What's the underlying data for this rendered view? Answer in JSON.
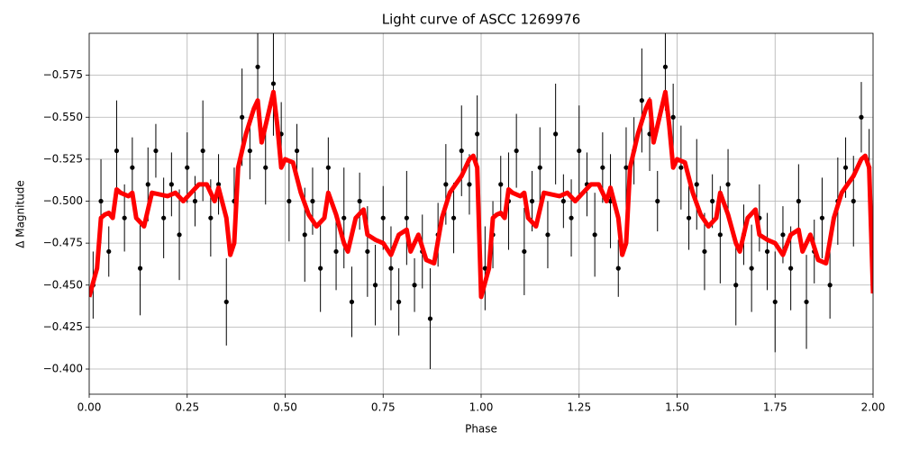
{
  "chart_data": {
    "type": "scatter",
    "title": "Light curve of ASCC 1269976",
    "xlabel": "Phase",
    "ylabel": "Δ Magnitude",
    "xlim": [
      0,
      2
    ],
    "ylim": [
      -0.385,
      -0.6
    ],
    "xticks": [
      {
        "value": 0,
        "label": "0.00"
      },
      {
        "value": 0.25,
        "label": "0.25"
      },
      {
        "value": 0.5,
        "label": "0.50"
      },
      {
        "value": 0.75,
        "label": "0.75"
      },
      {
        "value": 1,
        "label": "1.00"
      },
      {
        "value": 1.25,
        "label": "1.25"
      },
      {
        "value": 1.5,
        "label": "1.50"
      },
      {
        "value": 1.75,
        "label": "1.75"
      },
      {
        "value": 2,
        "label": "2.00"
      }
    ],
    "yticks": [
      {
        "value": -0.4,
        "label": "−0.400"
      },
      {
        "value": -0.425,
        "label": "−0.425"
      },
      {
        "value": -0.45,
        "label": "−0.450"
      },
      {
        "value": -0.475,
        "label": "−0.475"
      },
      {
        "value": -0.5,
        "label": "−0.500"
      },
      {
        "value": -0.525,
        "label": "−0.525"
      },
      {
        "value": -0.55,
        "label": "−0.550"
      },
      {
        "value": -0.575,
        "label": "−0.575"
      }
    ],
    "grid": true,
    "series": [
      {
        "color": "#000000",
        "x": [
          0.01,
          0.03,
          0.05,
          0.07,
          0.09,
          0.11,
          0.13,
          0.15,
          0.17,
          0.19,
          0.21,
          0.23,
          0.25,
          0.27,
          0.29,
          0.31,
          0.33,
          0.35,
          0.37,
          0.39,
          0.41,
          0.43,
          0.45,
          0.47,
          0.49,
          0.51,
          0.53,
          0.55,
          0.57,
          0.59,
          0.61,
          0.63,
          0.65,
          0.67,
          0.69,
          0.71,
          0.73,
          0.75,
          0.77,
          0.79,
          0.81,
          0.83,
          0.85,
          0.87,
          0.89,
          0.91,
          0.93,
          0.95,
          0.97,
          0.99,
          1.01,
          1.03,
          1.05,
          1.07,
          1.09,
          1.11,
          1.13,
          1.15,
          1.17,
          1.19,
          1.21,
          1.23,
          1.25,
          1.27,
          1.29,
          1.31,
          1.33,
          1.35,
          1.37,
          1.39,
          1.41,
          1.43,
          1.45,
          1.47,
          1.49,
          1.51,
          1.53,
          1.55,
          1.57,
          1.59,
          1.61,
          1.63,
          1.65,
          1.67,
          1.69,
          1.71,
          1.73,
          1.75,
          1.77,
          1.79,
          1.81,
          1.83,
          1.85,
          1.87,
          1.89,
          1.91,
          1.93,
          1.95,
          1.97,
          1.99
        ],
        "values": [
          -0.45,
          -0.5,
          -0.47,
          -0.53,
          -0.49,
          -0.52,
          -0.46,
          -0.51,
          -0.53,
          -0.49,
          -0.51,
          -0.48,
          -0.52,
          -0.5,
          -0.53,
          -0.49,
          -0.51,
          -0.44,
          -0.5,
          -0.55,
          -0.53,
          -0.58,
          -0.52,
          -0.57,
          -0.54,
          -0.5,
          -0.53,
          -0.48,
          -0.5,
          -0.46,
          -0.52,
          -0.47,
          -0.49,
          -0.44,
          -0.5,
          -0.47,
          -0.45,
          -0.49,
          -0.46,
          -0.44,
          -0.49,
          -0.45,
          -0.47,
          -0.43,
          -0.48,
          -0.51,
          -0.49,
          -0.53,
          -0.51,
          -0.54,
          -0.46,
          -0.48,
          -0.51,
          -0.5,
          -0.53,
          -0.47,
          -0.5,
          -0.52,
          -0.48,
          -0.54,
          -0.5,
          -0.49,
          -0.53,
          -0.51,
          -0.48,
          -0.52,
          -0.5,
          -0.46,
          -0.52,
          -0.53,
          -0.56,
          -0.54,
          -0.5,
          -0.58,
          -0.55,
          -0.52,
          -0.49,
          -0.51,
          -0.47,
          -0.5,
          -0.48,
          -0.51,
          -0.45,
          -0.48,
          -0.46,
          -0.49,
          -0.47,
          -0.44,
          -0.48,
          -0.46,
          -0.5,
          -0.44,
          -0.47,
          -0.49,
          -0.45,
          -0.5,
          -0.52,
          -0.5,
          -0.55,
          -0.52
        ],
        "errors": [
          0.02,
          0.025,
          0.015,
          0.03,
          0.02,
          0.018,
          0.028,
          0.022,
          0.016,
          0.024,
          0.019,
          0.027,
          0.021,
          0.015,
          0.03,
          0.023,
          0.018,
          0.026,
          0.02,
          0.029,
          0.017,
          0.025,
          0.022,
          0.031,
          0.019,
          0.024,
          0.016,
          0.028,
          0.02,
          0.026,
          0.018,
          0.023,
          0.03,
          0.021,
          0.017,
          0.027,
          0.024,
          0.019,
          0.025,
          0.02,
          0.028,
          0.016,
          0.022,
          0.03,
          0.019,
          0.024,
          0.021,
          0.027,
          0.018,
          0.023,
          0.025,
          0.02,
          0.017,
          0.029,
          0.022,
          0.026,
          0.018,
          0.024,
          0.02,
          0.03,
          0.016,
          0.023,
          0.027,
          0.019,
          0.025,
          0.021,
          0.028,
          0.017,
          0.024,
          0.02,
          0.031,
          0.022,
          0.018,
          0.026,
          0.02,
          0.025,
          0.019,
          0.027,
          0.023,
          0.016,
          0.029,
          0.021,
          0.024,
          0.018,
          0.026,
          0.02,
          0.023,
          0.03,
          0.017,
          0.025,
          0.022,
          0.028,
          0.019,
          0.024,
          0.02,
          0.026,
          0.018,
          0.027,
          0.021,
          0.023
        ]
      },
      {
        "type": "line",
        "color": "#ff0000",
        "x": [
          0,
          0.02,
          0.03,
          0.04,
          0.05,
          0.06,
          0.07,
          0.08,
          0.1,
          0.11,
          0.12,
          0.14,
          0.16,
          0.2,
          0.22,
          0.24,
          0.26,
          0.28,
          0.3,
          0.32,
          0.33,
          0.35,
          0.36,
          0.37,
          0.38,
          0.39,
          0.4,
          0.42,
          0.43,
          0.44,
          0.45,
          0.47,
          0.48,
          0.49,
          0.5,
          0.52,
          0.54,
          0.56,
          0.58,
          0.6,
          0.61,
          0.63,
          0.65,
          0.66,
          0.68,
          0.7,
          0.71,
          0.73,
          0.75,
          0.77,
          0.79,
          0.81,
          0.82,
          0.84,
          0.86,
          0.88,
          0.9,
          0.92,
          0.95,
          0.97,
          0.98,
          0.99,
          1,
          1.02,
          1.03,
          1.04,
          1.05,
          1.06,
          1.07,
          1.08,
          1.1,
          1.11,
          1.12,
          1.14,
          1.16,
          1.2,
          1.22,
          1.24,
          1.26,
          1.28,
          1.3,
          1.32,
          1.33,
          1.35,
          1.36,
          1.37,
          1.38,
          1.39,
          1.4,
          1.42,
          1.43,
          1.44,
          1.45,
          1.47,
          1.48,
          1.49,
          1.5,
          1.52,
          1.54,
          1.56,
          1.58,
          1.6,
          1.61,
          1.63,
          1.65,
          1.66,
          1.68,
          1.7,
          1.71,
          1.73,
          1.75,
          1.77,
          1.79,
          1.81,
          1.82,
          1.84,
          1.86,
          1.88,
          1.9,
          1.92,
          1.95,
          1.97,
          1.98,
          1.99,
          2
        ],
        "values": [
          -0.443,
          -0.46,
          -0.49,
          -0.492,
          -0.493,
          -0.49,
          -0.507,
          -0.505,
          -0.503,
          -0.505,
          -0.49,
          -0.485,
          -0.505,
          -0.503,
          -0.505,
          -0.5,
          -0.505,
          -0.51,
          -0.51,
          -0.5,
          -0.508,
          -0.49,
          -0.468,
          -0.475,
          -0.52,
          -0.53,
          -0.54,
          -0.555,
          -0.56,
          -0.535,
          -0.545,
          -0.565,
          -0.545,
          -0.52,
          -0.525,
          -0.523,
          -0.505,
          -0.492,
          -0.485,
          -0.49,
          -0.505,
          -0.492,
          -0.475,
          -0.47,
          -0.49,
          -0.495,
          -0.48,
          -0.477,
          -0.475,
          -0.468,
          -0.48,
          -0.483,
          -0.47,
          -0.48,
          -0.465,
          -0.463,
          -0.49,
          -0.505,
          -0.515,
          -0.525,
          -0.527,
          -0.52,
          -0.443,
          -0.46,
          -0.49,
          -0.492,
          -0.493,
          -0.49,
          -0.507,
          -0.505,
          -0.503,
          -0.505,
          -0.49,
          -0.485,
          -0.505,
          -0.503,
          -0.505,
          -0.5,
          -0.505,
          -0.51,
          -0.51,
          -0.5,
          -0.508,
          -0.49,
          -0.468,
          -0.475,
          -0.52,
          -0.53,
          -0.54,
          -0.555,
          -0.56,
          -0.535,
          -0.545,
          -0.565,
          -0.545,
          -0.52,
          -0.525,
          -0.523,
          -0.505,
          -0.492,
          -0.485,
          -0.49,
          -0.505,
          -0.492,
          -0.475,
          -0.47,
          -0.49,
          -0.495,
          -0.48,
          -0.477,
          -0.475,
          -0.468,
          -0.48,
          -0.483,
          -0.47,
          -0.48,
          -0.465,
          -0.463,
          -0.49,
          -0.505,
          -0.515,
          -0.525,
          -0.527,
          -0.52,
          -0.445
        ]
      }
    ]
  }
}
